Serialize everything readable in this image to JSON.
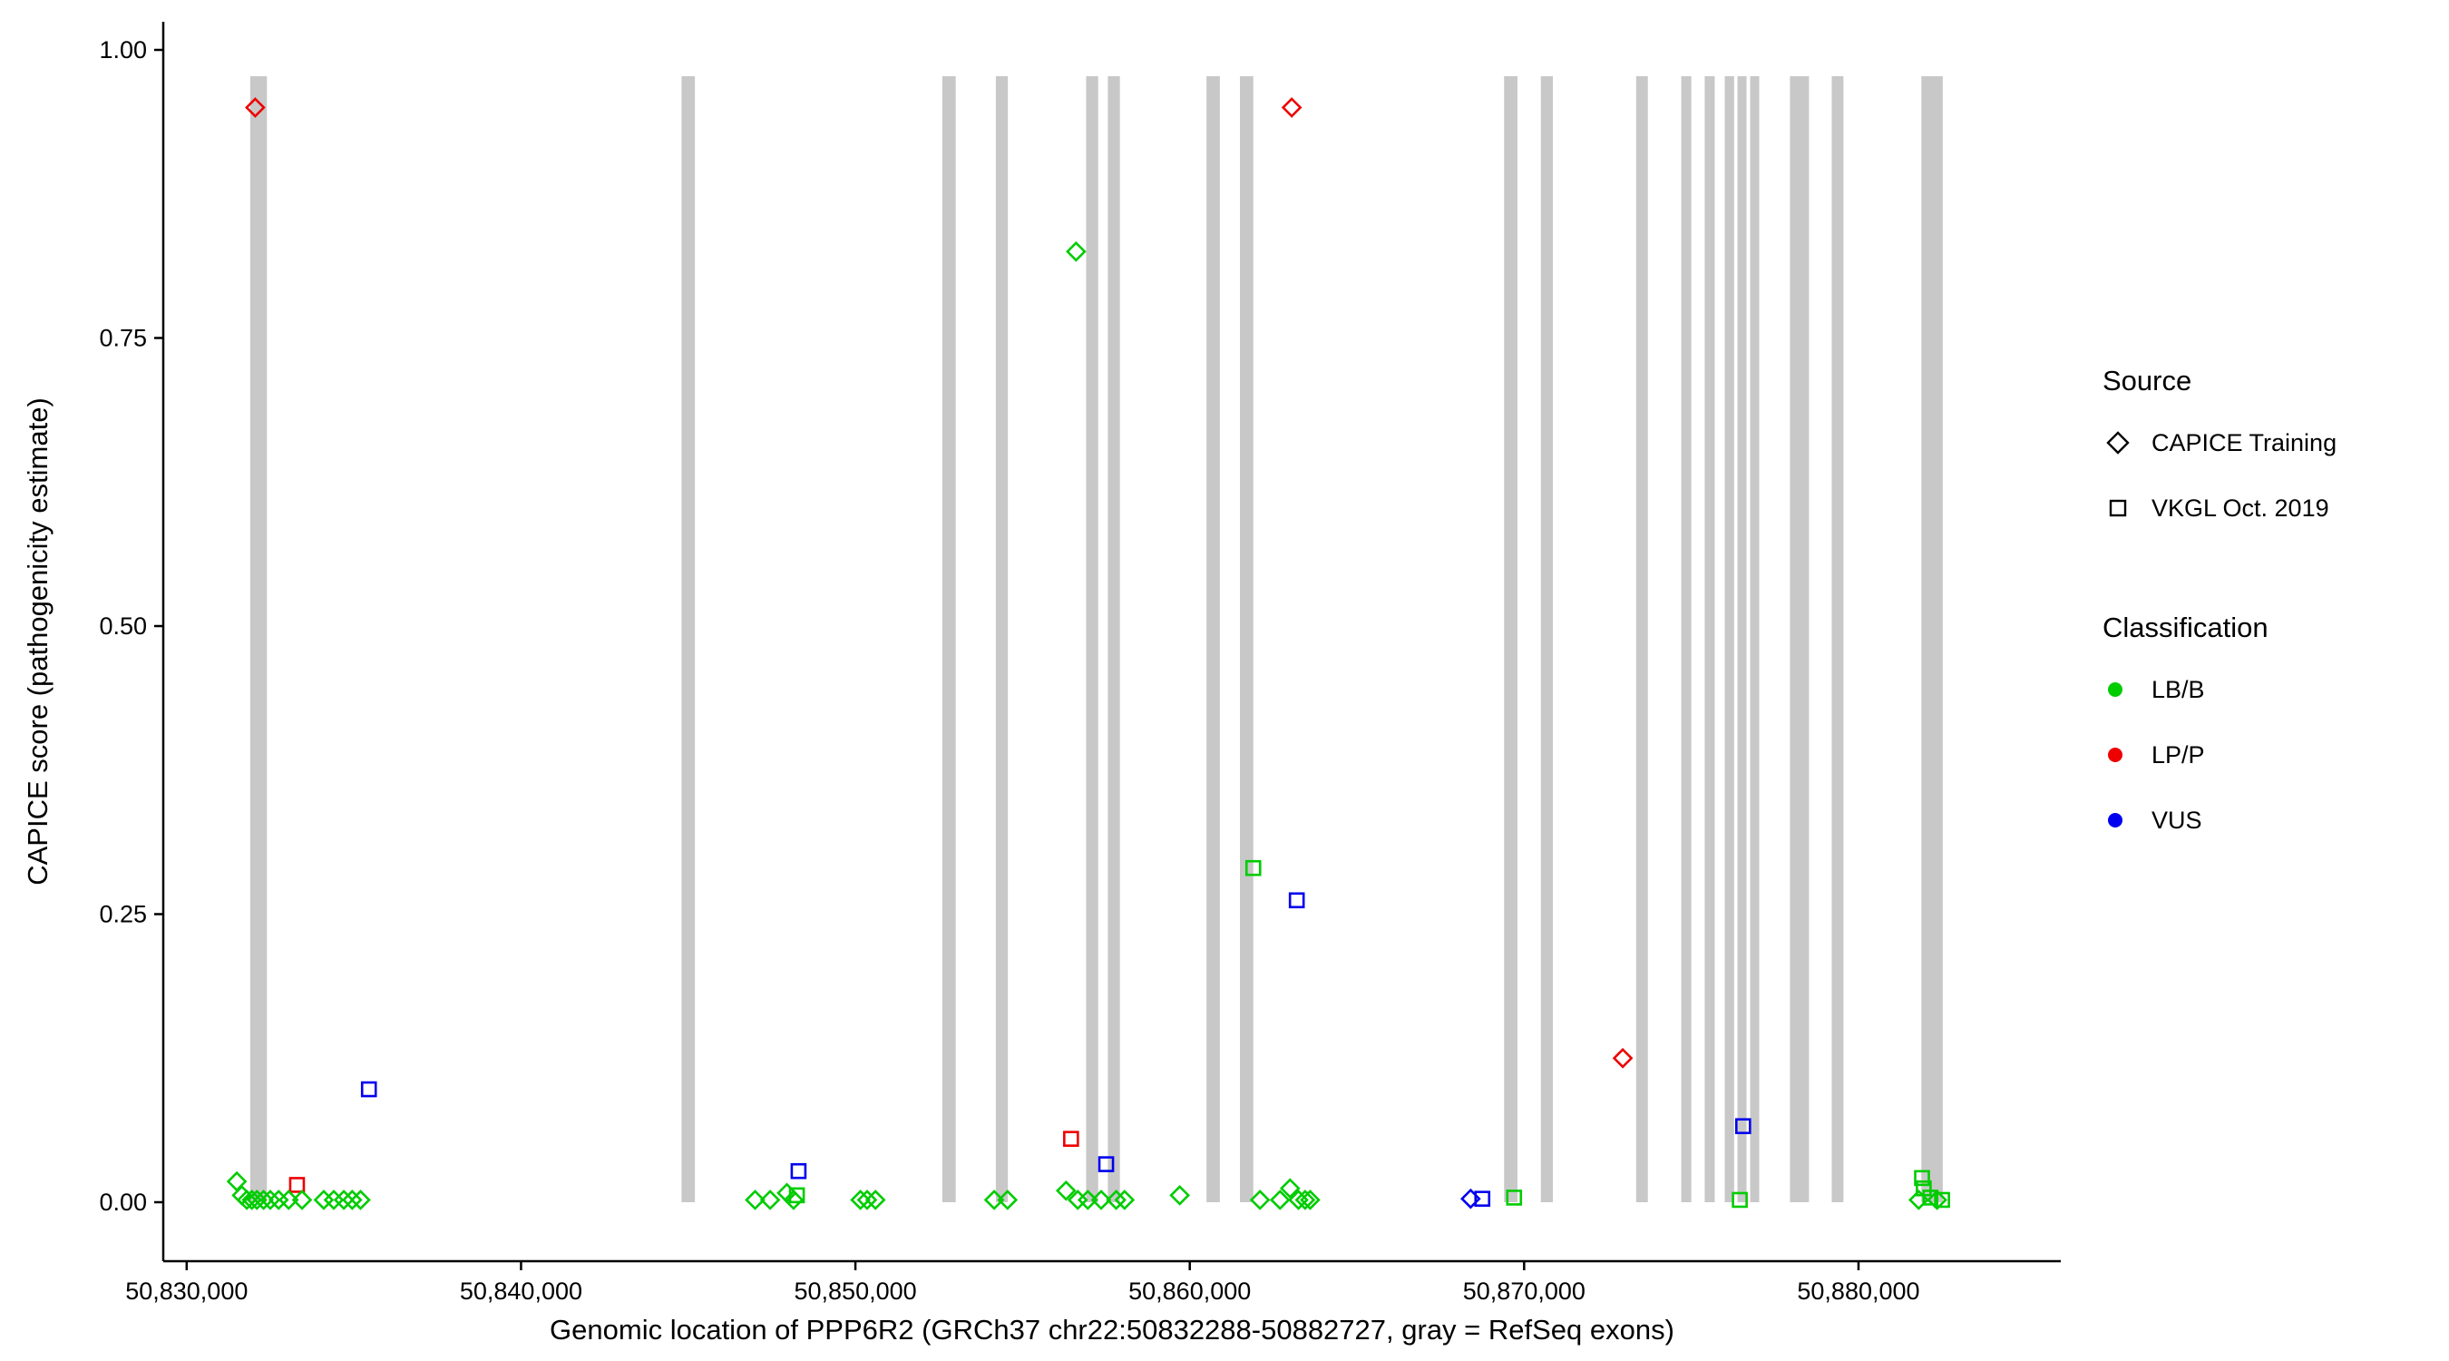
{
  "legend": {
    "source": {
      "title": "Source",
      "items": [
        {
          "shape": "diamond",
          "label": "CAPICE Training"
        },
        {
          "shape": "square",
          "label": "VKGL Oct. 2019"
        }
      ]
    },
    "classification": {
      "title": "Classification",
      "items": [
        {
          "label": "LB/B"
        },
        {
          "label": "LP/P"
        },
        {
          "label": "VUS"
        }
      ]
    }
  },
  "chart_data": {
    "type": "scatter",
    "title": "",
    "xlabel": "Genomic location of PPP6R2 (GRCh37 chr22:50832288-50882727, gray = RefSeq exons)",
    "ylabel": "CAPICE score (pathogenicity estimate)",
    "xlim": [
      50829300,
      50886050
    ],
    "ylim": [
      0,
      1
    ],
    "x_ticks": [
      {
        "value": 50830000,
        "label": "50,830,000"
      },
      {
        "value": 50840000,
        "label": "50,840,000"
      },
      {
        "value": 50850000,
        "label": "50,850,000"
      },
      {
        "value": 50860000,
        "label": "50,860,000"
      },
      {
        "value": 50870000,
        "label": "50,870,000"
      },
      {
        "value": 50880000,
        "label": "50,880,000"
      }
    ],
    "y_ticks": [
      {
        "value": 0.0,
        "label": "0.00"
      },
      {
        "value": 0.25,
        "label": "0.25"
      },
      {
        "value": 0.5,
        "label": "0.50"
      },
      {
        "value": 0.75,
        "label": "0.75"
      },
      {
        "value": 1.0,
        "label": "1.00"
      }
    ],
    "class_colors": {
      "LB/B": "#00CC00",
      "LP/P": "#EE0000",
      "VUS": "#0000EE"
    },
    "exon_color": "#C8C8C8",
    "exons": [
      [
        50831900,
        50832400
      ],
      [
        50844800,
        50845200
      ],
      [
        50852600,
        50853000
      ],
      [
        50854200,
        50854560
      ],
      [
        50856900,
        50857260
      ],
      [
        50857550,
        50857910
      ],
      [
        50860500,
        50860900
      ],
      [
        50861500,
        50861900
      ],
      [
        50869400,
        50869800
      ],
      [
        50870500,
        50870860
      ],
      [
        50873350,
        50873700
      ],
      [
        50874700,
        50875000
      ],
      [
        50875400,
        50875700
      ],
      [
        50876000,
        50876280
      ],
      [
        50876380,
        50876640
      ],
      [
        50876760,
        50877030
      ],
      [
        50877950,
        50878520
      ],
      [
        50879200,
        50879550
      ],
      [
        50881880,
        50882520
      ]
    ],
    "points": [
      {
        "x": 50832050,
        "y": 0.95,
        "shape": "diamond",
        "cls": "LP/P"
      },
      {
        "x": 50863050,
        "y": 0.95,
        "shape": "diamond",
        "cls": "LP/P"
      },
      {
        "x": 50872950,
        "y": 0.125,
        "shape": "diamond",
        "cls": "LP/P"
      },
      {
        "x": 50833300,
        "y": 0.015,
        "shape": "square",
        "cls": "LP/P"
      },
      {
        "x": 50856450,
        "y": 0.055,
        "shape": "square",
        "cls": "LP/P"
      },
      {
        "x": 50856600,
        "y": 0.825,
        "shape": "diamond",
        "cls": "LB/B"
      },
      {
        "x": 50861900,
        "y": 0.29,
        "shape": "square",
        "cls": "LB/B"
      },
      {
        "x": 50835450,
        "y": 0.098,
        "shape": "square",
        "cls": "VUS"
      },
      {
        "x": 50848300,
        "y": 0.027,
        "shape": "square",
        "cls": "VUS"
      },
      {
        "x": 50857500,
        "y": 0.033,
        "shape": "square",
        "cls": "VUS"
      },
      {
        "x": 50863200,
        "y": 0.262,
        "shape": "square",
        "cls": "VUS"
      },
      {
        "x": 50876550,
        "y": 0.066,
        "shape": "square",
        "cls": "VUS"
      },
      {
        "x": 50868750,
        "y": 0.003,
        "shape": "square",
        "cls": "VUS"
      },
      {
        "x": 50868400,
        "y": 0.003,
        "shape": "diamond",
        "cls": "VUS"
      },
      {
        "x": 50831500,
        "y": 0.018,
        "shape": "diamond",
        "cls": "LB/B"
      },
      {
        "x": 50831650,
        "y": 0.006,
        "shape": "diamond",
        "cls": "LB/B"
      },
      {
        "x": 50831800,
        "y": 0.002,
        "shape": "diamond",
        "cls": "LB/B"
      },
      {
        "x": 50831950,
        "y": 0.002,
        "shape": "diamond",
        "cls": "LB/B"
      },
      {
        "x": 50832100,
        "y": 0.002,
        "shape": "diamond",
        "cls": "LB/B"
      },
      {
        "x": 50832300,
        "y": 0.002,
        "shape": "diamond",
        "cls": "LB/B"
      },
      {
        "x": 50832500,
        "y": 0.002,
        "shape": "diamond",
        "cls": "LB/B"
      },
      {
        "x": 50832750,
        "y": 0.002,
        "shape": "diamond",
        "cls": "LB/B"
      },
      {
        "x": 50833050,
        "y": 0.002,
        "shape": "diamond",
        "cls": "LB/B"
      },
      {
        "x": 50833450,
        "y": 0.002,
        "shape": "diamond",
        "cls": "LB/B"
      },
      {
        "x": 50834100,
        "y": 0.002,
        "shape": "diamond",
        "cls": "LB/B"
      },
      {
        "x": 50834400,
        "y": 0.002,
        "shape": "diamond",
        "cls": "LB/B"
      },
      {
        "x": 50834700,
        "y": 0.002,
        "shape": "diamond",
        "cls": "LB/B"
      },
      {
        "x": 50834950,
        "y": 0.002,
        "shape": "diamond",
        "cls": "LB/B"
      },
      {
        "x": 50835200,
        "y": 0.002,
        "shape": "diamond",
        "cls": "LB/B"
      },
      {
        "x": 50847000,
        "y": 0.002,
        "shape": "diamond",
        "cls": "LB/B"
      },
      {
        "x": 50847450,
        "y": 0.002,
        "shape": "diamond",
        "cls": "LB/B"
      },
      {
        "x": 50847950,
        "y": 0.008,
        "shape": "diamond",
        "cls": "LB/B"
      },
      {
        "x": 50848150,
        "y": 0.002,
        "shape": "diamond",
        "cls": "LB/B"
      },
      {
        "x": 50848250,
        "y": 0.006,
        "shape": "square",
        "cls": "LB/B"
      },
      {
        "x": 50850150,
        "y": 0.002,
        "shape": "diamond",
        "cls": "LB/B"
      },
      {
        "x": 50850350,
        "y": 0.002,
        "shape": "diamond",
        "cls": "LB/B"
      },
      {
        "x": 50850600,
        "y": 0.002,
        "shape": "diamond",
        "cls": "LB/B"
      },
      {
        "x": 50854150,
        "y": 0.002,
        "shape": "diamond",
        "cls": "LB/B"
      },
      {
        "x": 50854550,
        "y": 0.002,
        "shape": "diamond",
        "cls": "LB/B"
      },
      {
        "x": 50856300,
        "y": 0.01,
        "shape": "diamond",
        "cls": "LB/B"
      },
      {
        "x": 50856650,
        "y": 0.002,
        "shape": "diamond",
        "cls": "LB/B"
      },
      {
        "x": 50856950,
        "y": 0.002,
        "shape": "diamond",
        "cls": "LB/B"
      },
      {
        "x": 50857350,
        "y": 0.002,
        "shape": "diamond",
        "cls": "LB/B"
      },
      {
        "x": 50857800,
        "y": 0.002,
        "shape": "diamond",
        "cls": "LB/B"
      },
      {
        "x": 50858050,
        "y": 0.002,
        "shape": "diamond",
        "cls": "LB/B"
      },
      {
        "x": 50859700,
        "y": 0.006,
        "shape": "diamond",
        "cls": "LB/B"
      },
      {
        "x": 50862100,
        "y": 0.002,
        "shape": "diamond",
        "cls": "LB/B"
      },
      {
        "x": 50862700,
        "y": 0.002,
        "shape": "diamond",
        "cls": "LB/B"
      },
      {
        "x": 50863000,
        "y": 0.012,
        "shape": "diamond",
        "cls": "LB/B"
      },
      {
        "x": 50863250,
        "y": 0.002,
        "shape": "diamond",
        "cls": "LB/B"
      },
      {
        "x": 50863450,
        "y": 0.002,
        "shape": "diamond",
        "cls": "LB/B"
      },
      {
        "x": 50863600,
        "y": 0.002,
        "shape": "diamond",
        "cls": "LB/B"
      },
      {
        "x": 50869700,
        "y": 0.004,
        "shape": "square",
        "cls": "LB/B"
      },
      {
        "x": 50876450,
        "y": 0.002,
        "shape": "square",
        "cls": "LB/B"
      },
      {
        "x": 50881800,
        "y": 0.002,
        "shape": "diamond",
        "cls": "LB/B"
      },
      {
        "x": 50881900,
        "y": 0.021,
        "shape": "square",
        "cls": "LB/B"
      },
      {
        "x": 50881950,
        "y": 0.012,
        "shape": "square",
        "cls": "LB/B"
      },
      {
        "x": 50882150,
        "y": 0.004,
        "shape": "square",
        "cls": "LB/B"
      },
      {
        "x": 50882350,
        "y": 0.002,
        "shape": "diamond",
        "cls": "LB/B"
      },
      {
        "x": 50882500,
        "y": 0.002,
        "shape": "square",
        "cls": "LB/B"
      }
    ]
  }
}
